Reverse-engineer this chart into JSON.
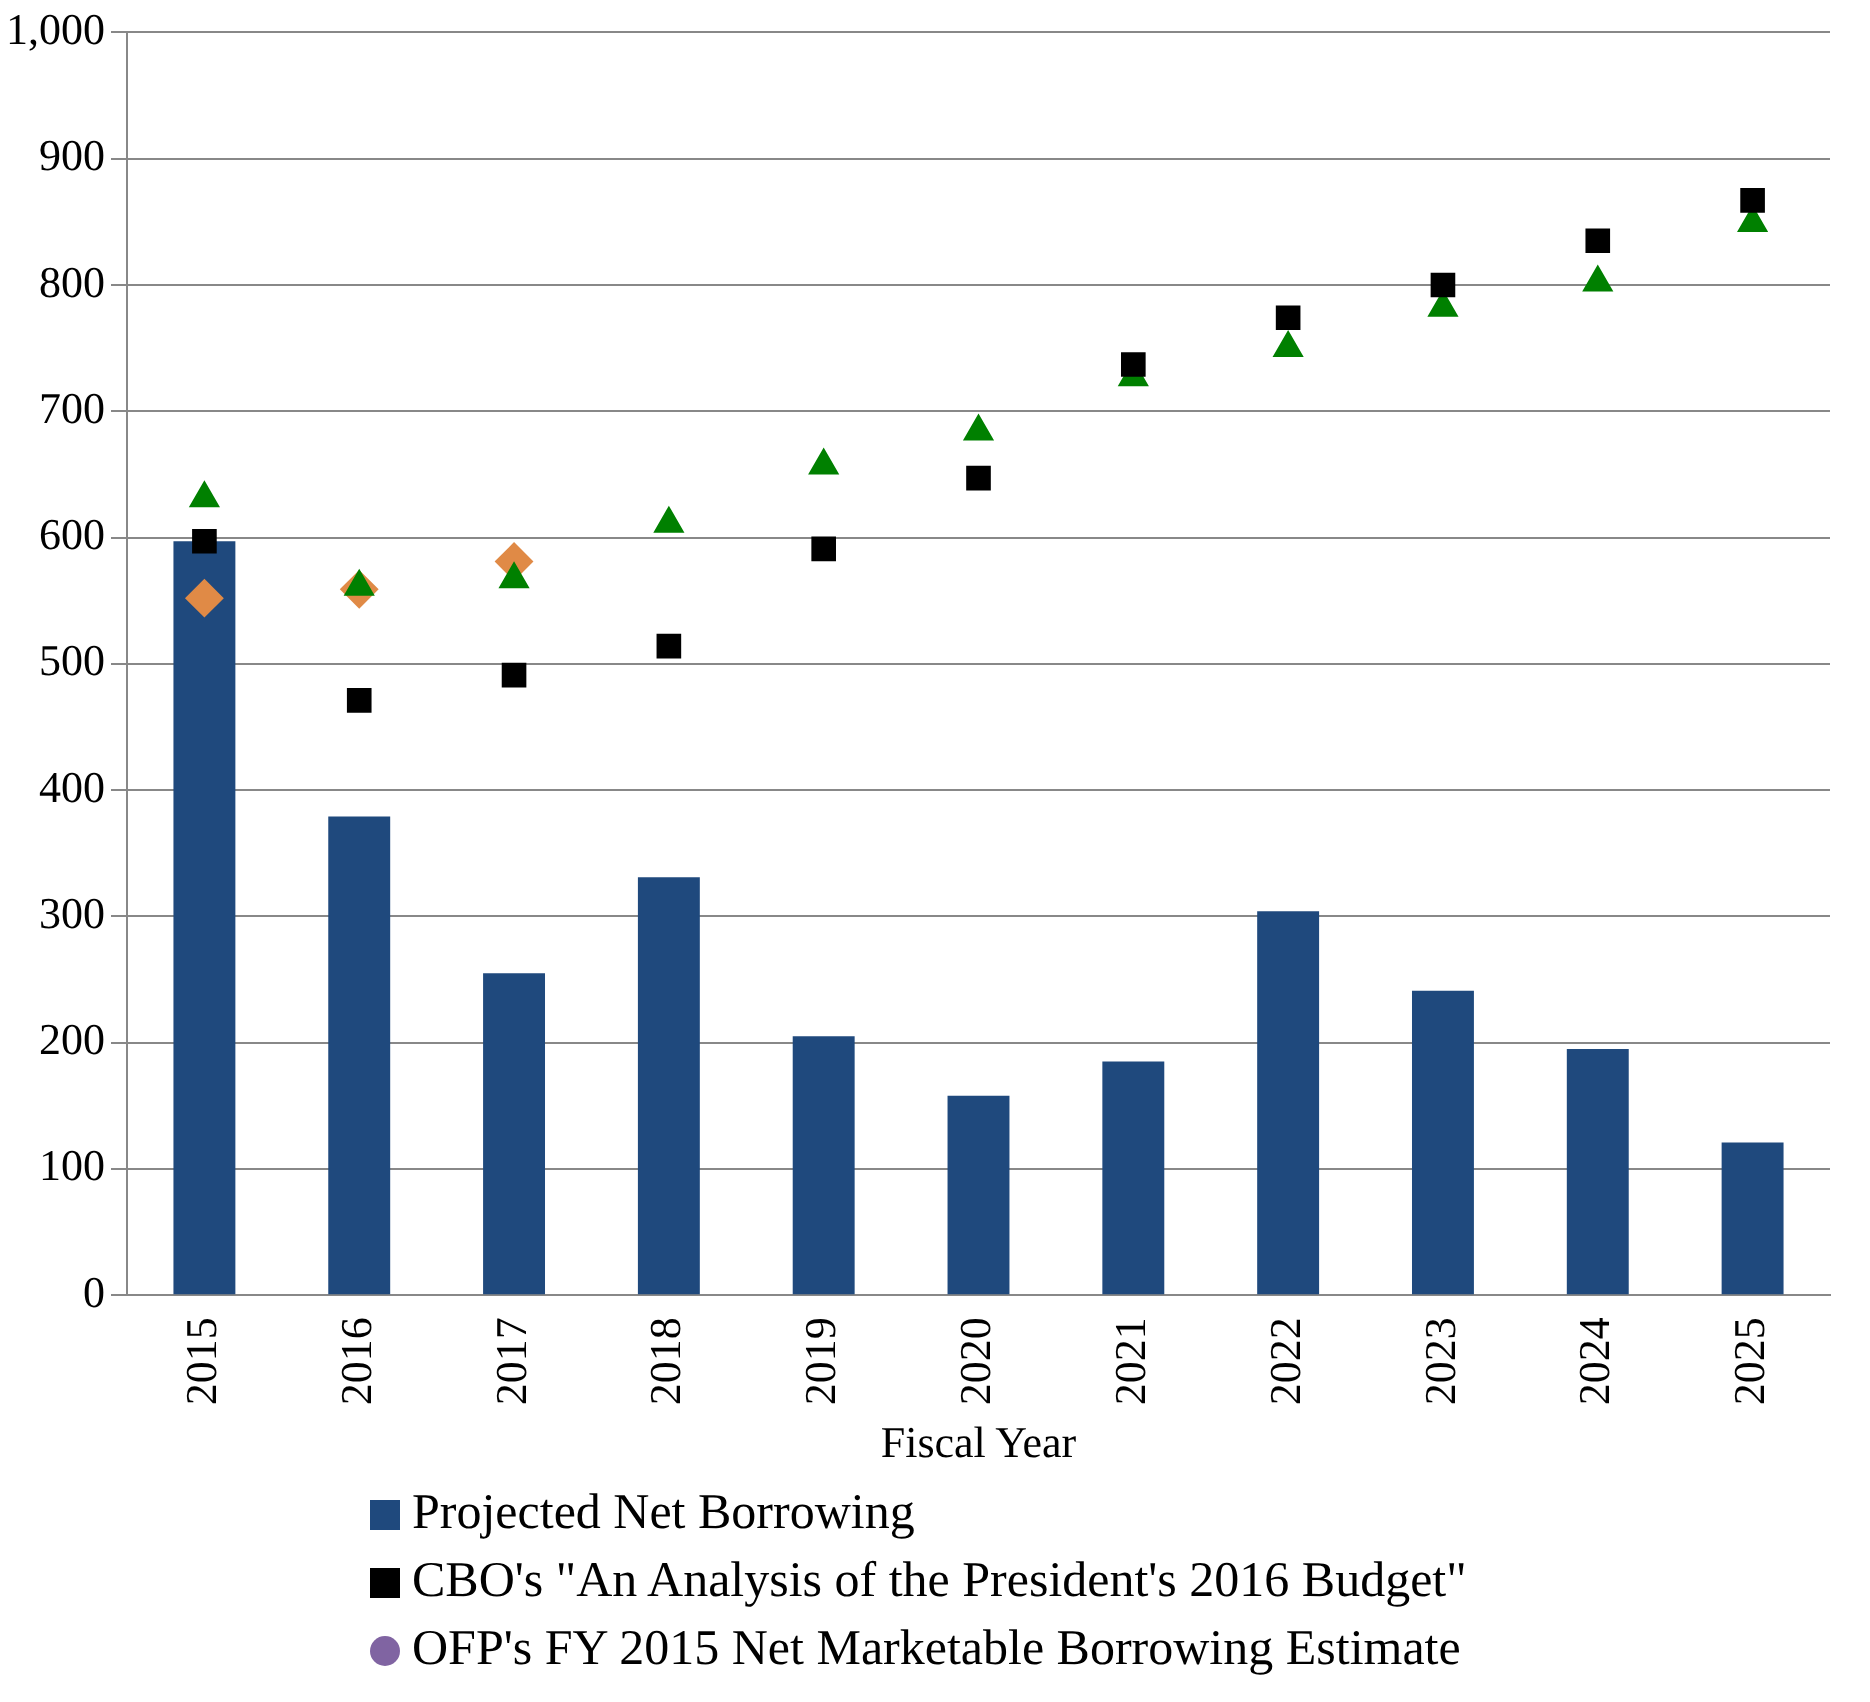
{
  "chart_data": {
    "type": "bar",
    "xlabel": "Fiscal Year",
    "categories": [
      "2015",
      "2016",
      "2017",
      "2018",
      "2019",
      "2020",
      "2021",
      "2022",
      "2023",
      "2024",
      "2025"
    ],
    "ylim": [
      0,
      1000
    ],
    "yticks": [
      0,
      100,
      200,
      300,
      400,
      500,
      600,
      700,
      800,
      900,
      {
        "value": 1000,
        "label": "1,000"
      }
    ],
    "grid": "y",
    "legend": "bottom",
    "series": [
      {
        "name": "Projected Net Borrowing",
        "color": "#1f497d",
        "values": [
          597,
          379,
          255,
          331,
          205,
          158,
          185,
          304,
          241,
          195,
          121
        ]
      },
      {
        "name": "CBO's \"An Analysis of the President's 2016 Budget\"",
        "type": "scatter",
        "marker": "square",
        "color": "#000000",
        "values": [
          597,
          471,
          491,
          514,
          591,
          647,
          737,
          774,
          800,
          835,
          867
        ]
      },
      {
        "name": "OFP's FY 2015 Net Marketable Borrowing Estimate",
        "type": "scatter",
        "marker": "circle",
        "color": "#8064a2",
        "values": [
          null,
          null,
          null,
          null,
          null,
          null,
          null,
          null,
          null,
          null,
          null
        ]
      },
      {
        "type": "scatter",
        "marker": "triangle",
        "color": "#008000",
        "values": [
          631,
          561,
          567,
          611,
          657,
          684,
          727,
          750,
          782,
          802,
          849
        ]
      },
      {
        "type": "scatter",
        "marker": "diamond",
        "color": "#e08a46",
        "values": [
          552,
          559,
          581,
          null,
          null,
          null,
          null,
          null,
          null,
          null,
          null
        ]
      }
    ]
  }
}
